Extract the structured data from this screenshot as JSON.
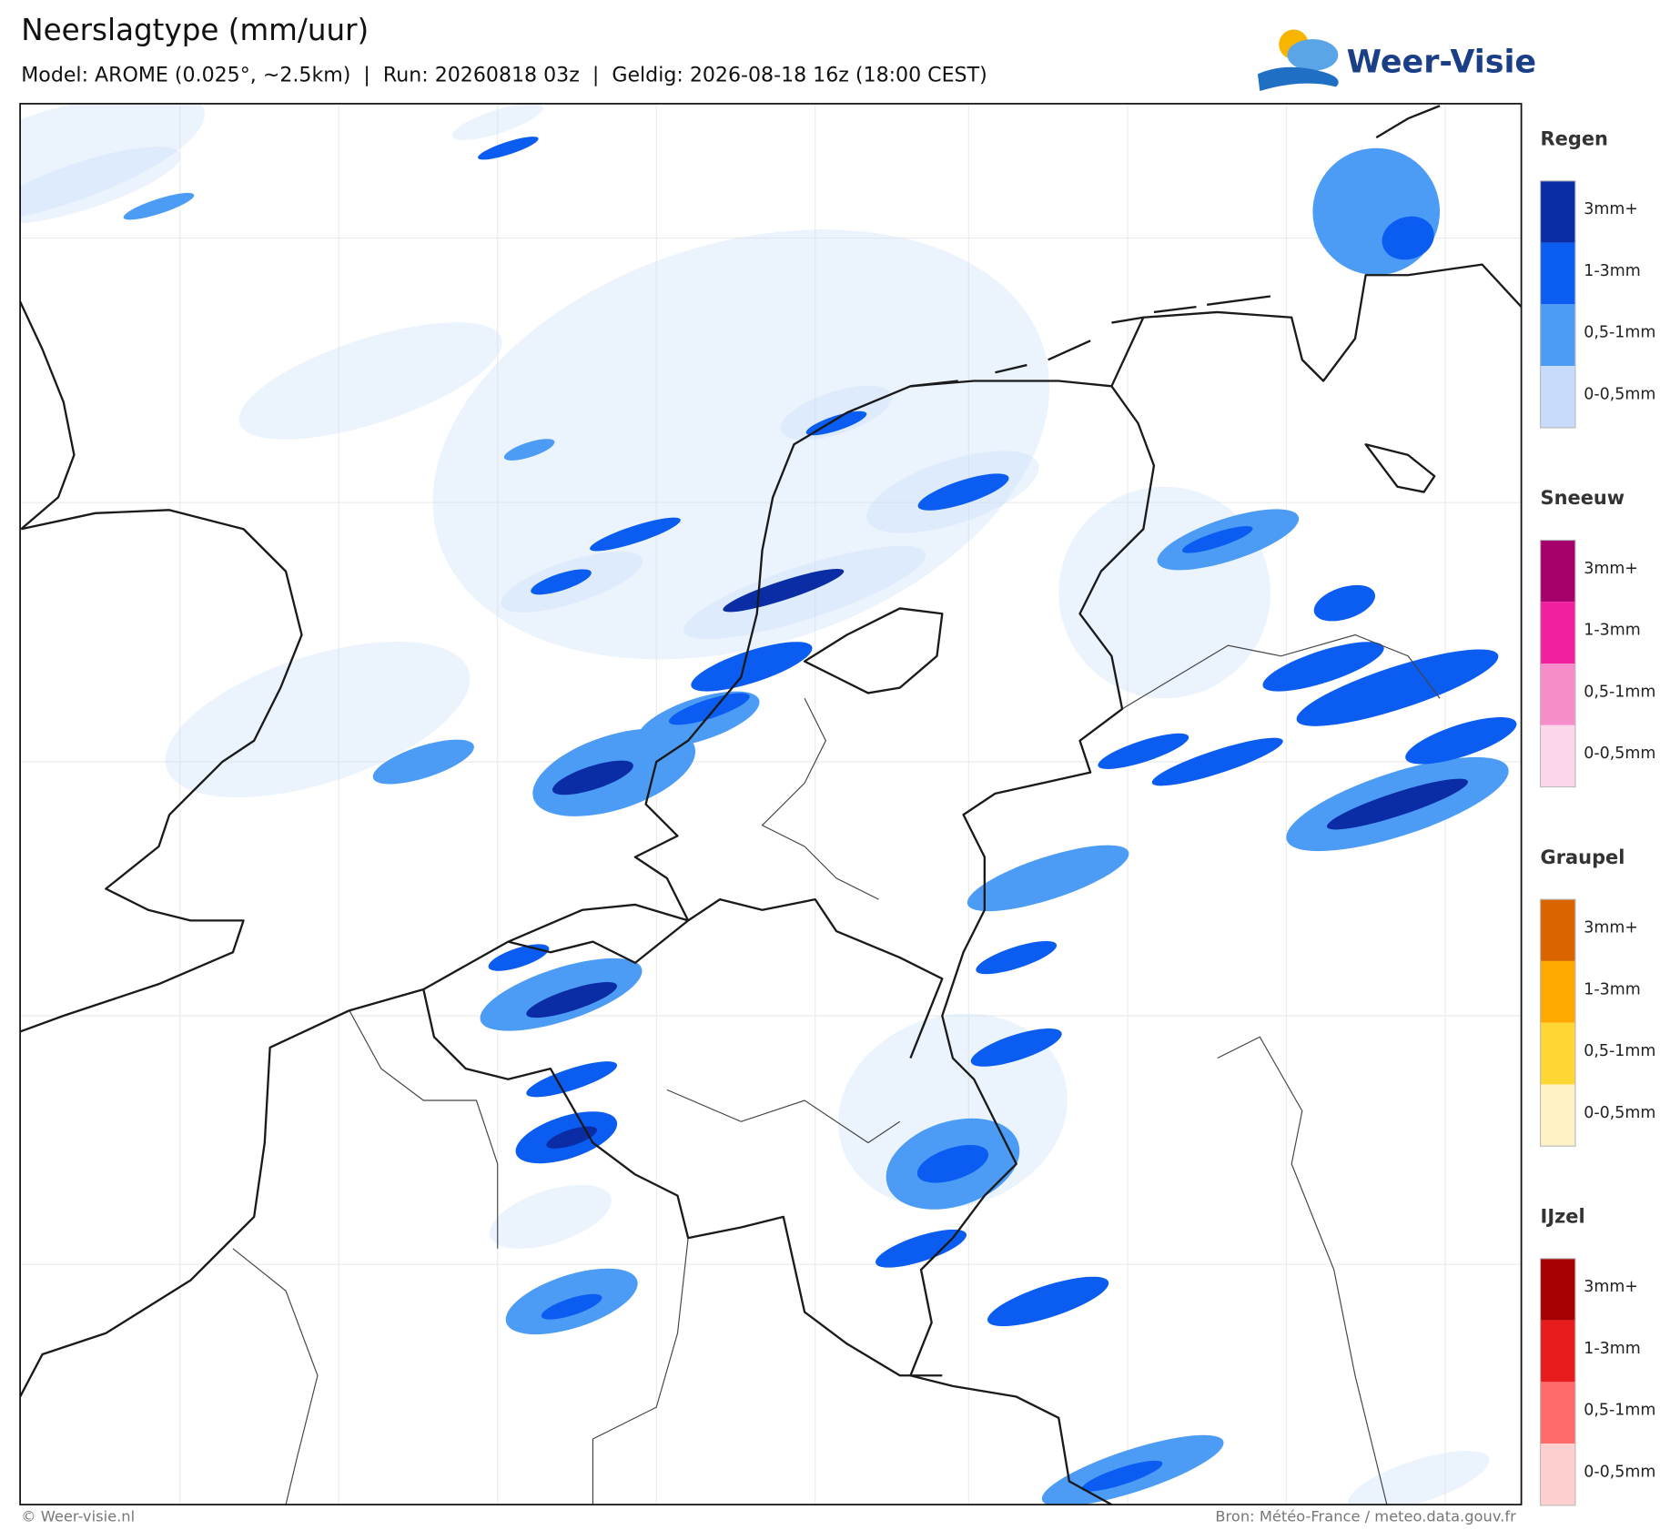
{
  "header": {
    "title": "Neerslagtype (mm/uur)",
    "subtitle": "Model: AROME (0.025°, ~2.5km)  |  Run: 20260818 03z  |  Geldig: 2026-08-18 16z (18:00 CEST)",
    "logo": "Weer-Visie"
  },
  "legend": [
    {
      "title": "Regen",
      "items": [
        {
          "label": "3mm+",
          "color": "#0a2da6"
        },
        {
          "label": "1-3mm",
          "color": "#0b5cf0"
        },
        {
          "label": "0,5-1mm",
          "color": "#4c9cf5"
        },
        {
          "label": "0-0,5mm",
          "color": "#c6dcfa"
        }
      ]
    },
    {
      "title": "Sneeuw",
      "items": [
        {
          "label": "3mm+",
          "color": "#a6006b"
        },
        {
          "label": "1-3mm",
          "color": "#f0209f"
        },
        {
          "label": "0,5-1mm",
          "color": "#f78ccb"
        },
        {
          "label": "0-0,5mm",
          "color": "#fcd7ec"
        }
      ]
    },
    {
      "title": "Graupel",
      "items": [
        {
          "label": "3mm+",
          "color": "#d96400"
        },
        {
          "label": "1-3mm",
          "color": "#ffa800"
        },
        {
          "label": "0,5-1mm",
          "color": "#ffd633"
        },
        {
          "label": "0-0,5mm",
          "color": "#fff2c4"
        }
      ]
    },
    {
      "title": "IJzel",
      "items": [
        {
          "label": "3mm+",
          "color": "#a60000"
        },
        {
          "label": "1-3mm",
          "color": "#e81c1c"
        },
        {
          "label": "0,5-1mm",
          "color": "#ff6b6b"
        },
        {
          "label": "0-0,5mm",
          "color": "#ffcfcf"
        }
      ]
    }
  ],
  "footer": {
    "left": "© Weer-visie.nl",
    "right": "Bron: Météo-France / meteo.data.gouv.fr"
  }
}
